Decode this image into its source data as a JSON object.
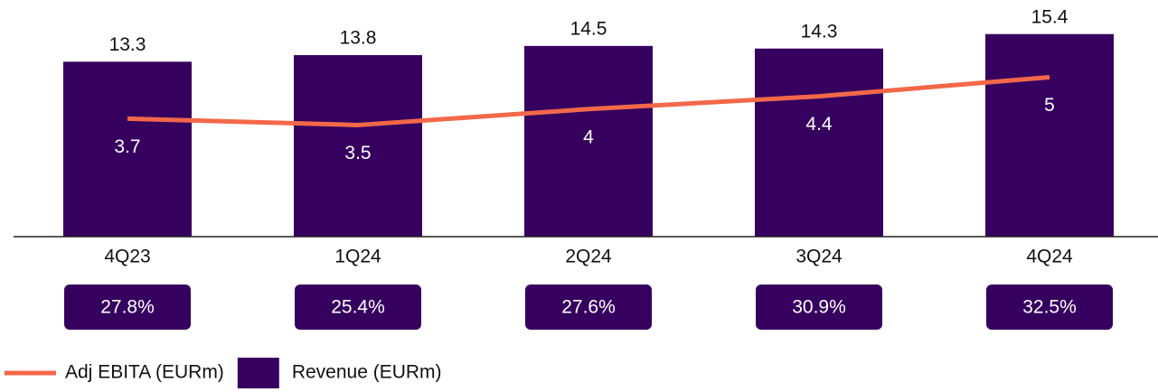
{
  "chart_data": {
    "type": "bar-line",
    "categories": [
      "4Q23",
      "1Q24",
      "2Q24",
      "3Q24",
      "4Q24"
    ],
    "series": [
      {
        "name": "Revenue (EURm)",
        "type": "bar",
        "color": "#36005f",
        "values": [
          13.3,
          13.8,
          14.5,
          14.3,
          15.4
        ]
      },
      {
        "name": "Adj EBITA (EURm)",
        "type": "line",
        "axis": "y2",
        "color": "#f26849",
        "values": [
          3.7,
          3.5,
          4.0,
          4.4,
          5.0
        ]
      }
    ],
    "annotations": [
      "27.8%",
      "25.4%",
      "27.6%",
      "30.9%",
      "32.5%"
    ],
    "ylim": [
      0,
      16
    ],
    "y2lim": [
      0,
      6.6
    ]
  }
}
